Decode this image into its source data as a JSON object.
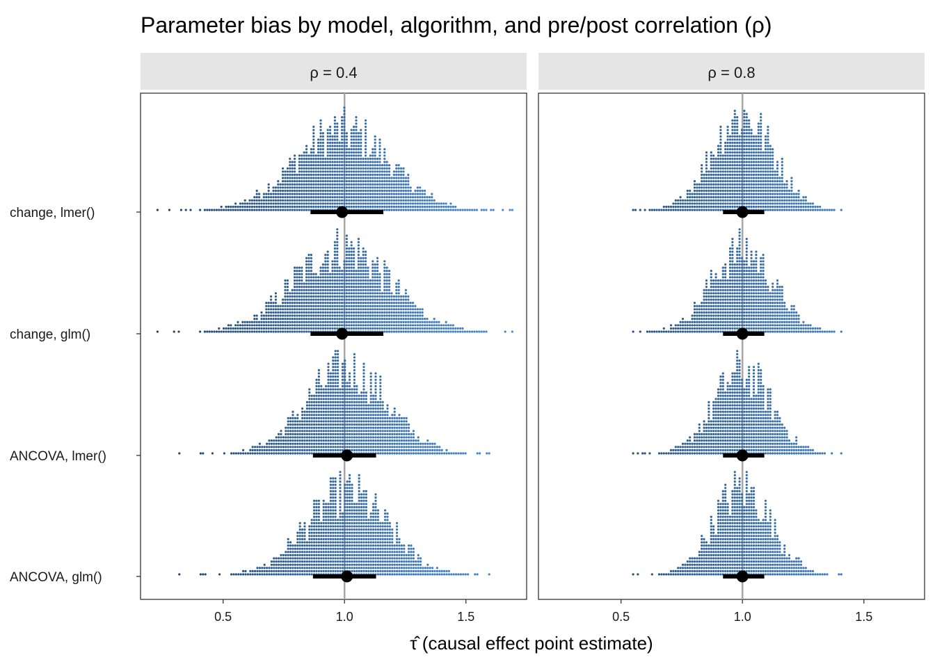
{
  "chart_data": {
    "type": "dotplot",
    "title": "Parameter bias by model, algorithm, and pre/post correlation (ρ)",
    "xlabel": "τ̂ (causal effect point estimate)",
    "ylabel": "",
    "xlim": [
      0.16,
      1.75
    ],
    "x_ticks": [
      0.5,
      1.0,
      1.5
    ],
    "x_tick_labels": [
      "0.5",
      "1.0",
      "1.5"
    ],
    "reference_line": 1.0,
    "grid": false,
    "legend": "none",
    "color_low": "#1c3f66",
    "color_high": "#4a90d9",
    "rows": [
      "change, lmer()",
      "change, glm()",
      "ANCOVA, lmer()",
      "ANCOVA, glm()"
    ],
    "panels": [
      {
        "label": "ρ = 0.4",
        "rows": [
          {
            "name": "change, lmer()",
            "median": 0.99,
            "interval": [
              0.86,
              1.16
            ],
            "sd": 0.2,
            "min": 0.23,
            "max": 1.69
          },
          {
            "name": "change, glm()",
            "median": 0.99,
            "interval": [
              0.86,
              1.16
            ],
            "sd": 0.2,
            "min": 0.23,
            "max": 1.69
          },
          {
            "name": "ANCOVA, lmer()",
            "median": 1.01,
            "interval": [
              0.87,
              1.13
            ],
            "sd": 0.17,
            "min": 0.32,
            "max": 1.59
          },
          {
            "name": "ANCOVA, glm()",
            "median": 1.01,
            "interval": [
              0.87,
              1.13
            ],
            "sd": 0.17,
            "min": 0.32,
            "max": 1.59
          }
        ]
      },
      {
        "label": "ρ = 0.8",
        "rows": [
          {
            "name": "change, lmer()",
            "median": 1.0,
            "interval": [
              0.92,
              1.09
            ],
            "sd": 0.13,
            "min": 0.55,
            "max": 1.4
          },
          {
            "name": "change, glm()",
            "median": 1.0,
            "interval": [
              0.92,
              1.09
            ],
            "sd": 0.13,
            "min": 0.55,
            "max": 1.4
          },
          {
            "name": "ANCOVA, lmer()",
            "median": 1.0,
            "interval": [
              0.92,
              1.09
            ],
            "sd": 0.12,
            "min": 0.55,
            "max": 1.4
          },
          {
            "name": "ANCOVA, glm()",
            "median": 1.0,
            "interval": [
              0.92,
              1.09
            ],
            "sd": 0.12,
            "min": 0.55,
            "max": 1.4
          }
        ]
      }
    ]
  }
}
